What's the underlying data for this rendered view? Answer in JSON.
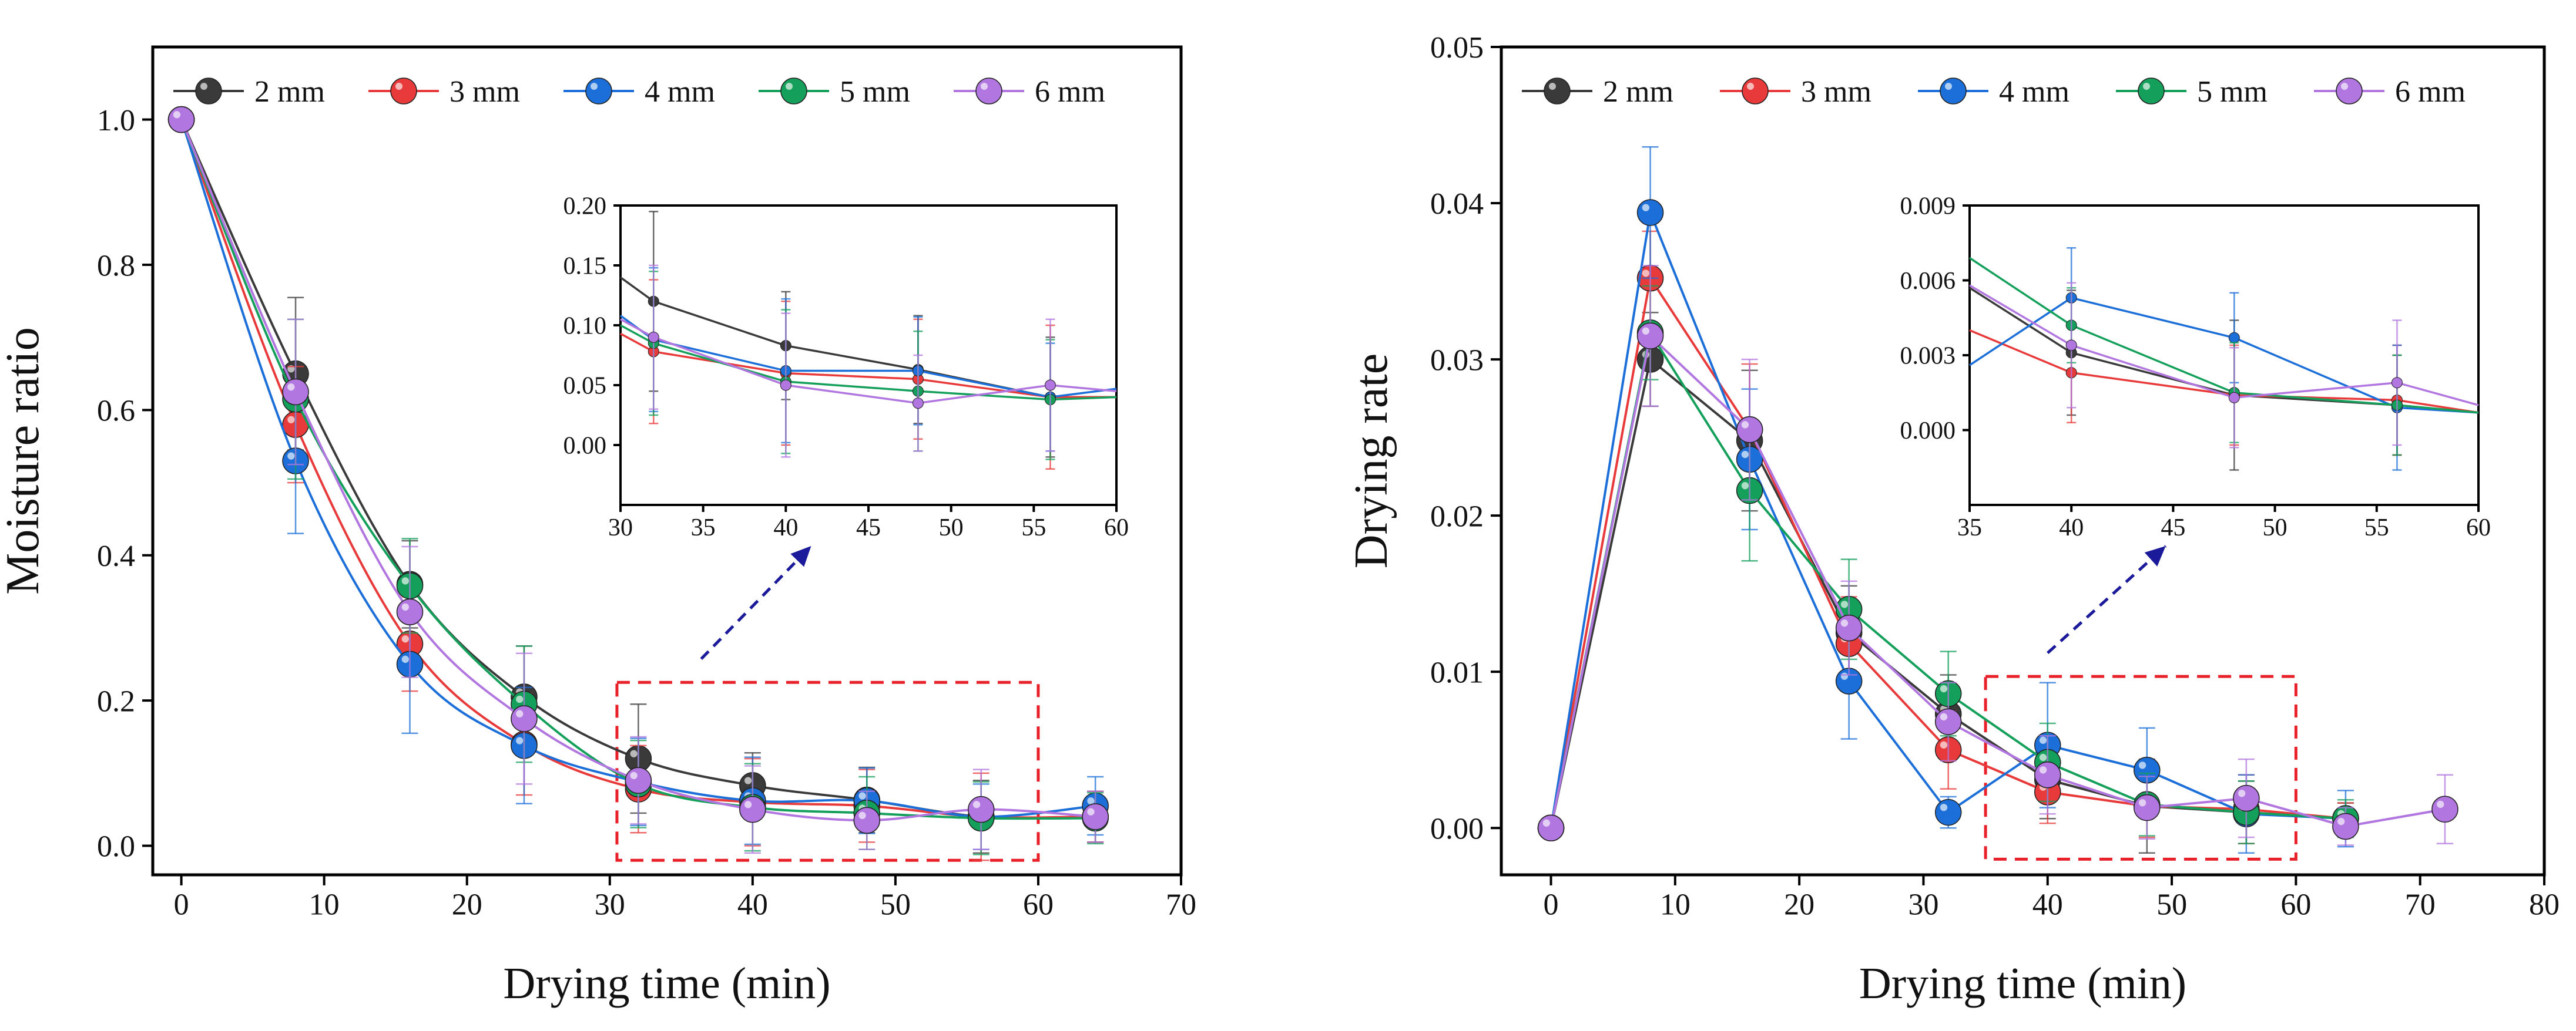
{
  "colors": {
    "2 mm": "#3a3a3a",
    "3 mm": "#e83a3a",
    "4 mm": "#1c6fd8",
    "5 mm": "#14a05a",
    "6 mm": "#b276e0"
  },
  "chart_data": [
    {
      "id": "moisture-main",
      "type": "line",
      "parent": "left",
      "title": "",
      "xlabel": "Drying time (min)",
      "ylabel": "Moisture ratio",
      "xlim": [
        -2,
        70
      ],
      "ylim": [
        -0.04,
        1.1
      ],
      "xticks": [
        0,
        10,
        20,
        30,
        40,
        50,
        60,
        70
      ],
      "yticks": [
        0.0,
        0.2,
        0.4,
        0.6,
        0.8,
        1.0
      ],
      "ytick_labels": [
        "0.0",
        "0.2",
        "0.4",
        "0.6",
        "0.8",
        "1.0"
      ],
      "legend": [
        "2 mm",
        "3 mm",
        "4 mm",
        "5 mm",
        "6 mm"
      ],
      "legend_position": "top",
      "annotation": {
        "type": "zoom-box",
        "x": [
          30.5,
          60
        ],
        "y": [
          -0.02,
          0.225
        ]
      },
      "series": [
        {
          "name": "2 mm",
          "x": [
            0,
            8,
            16,
            24,
            32,
            40,
            48,
            56,
            64
          ],
          "values": [
            1.0,
            0.65,
            0.36,
            0.205,
            0.12,
            0.083,
            0.063,
            0.04,
            0.04
          ],
          "err": [
            0,
            0.105,
            0.06,
            0.07,
            0.075,
            0.045,
            0.045,
            0.05,
            0.035
          ]
        },
        {
          "name": "3 mm",
          "x": [
            0,
            8,
            16,
            24,
            32,
            40,
            48,
            56,
            64
          ],
          "values": [
            1.0,
            0.58,
            0.278,
            0.14,
            0.078,
            0.06,
            0.055,
            0.04,
            0.04
          ],
          "err": [
            0,
            0.08,
            0.065,
            0.07,
            0.06,
            0.06,
            0.05,
            0.06,
            0.035
          ]
        },
        {
          "name": "4 mm",
          "x": [
            0,
            8,
            16,
            24,
            32,
            40,
            48,
            56,
            64
          ],
          "values": [
            1.0,
            0.53,
            0.25,
            0.138,
            0.088,
            0.062,
            0.062,
            0.04,
            0.055
          ],
          "err": [
            0,
            0.1,
            0.095,
            0.08,
            0.06,
            0.06,
            0.045,
            0.045,
            0.04
          ]
        },
        {
          "name": "5 mm",
          "x": [
            0,
            8,
            16,
            24,
            32,
            40,
            48,
            56,
            64
          ],
          "values": [
            1.0,
            0.615,
            0.358,
            0.195,
            0.085,
            0.053,
            0.045,
            0.038,
            0.038
          ],
          "err": [
            0,
            0.11,
            0.065,
            0.08,
            0.06,
            0.06,
            0.05,
            0.05,
            0.035
          ]
        },
        {
          "name": "6 mm",
          "x": [
            0,
            8,
            16,
            24,
            32,
            40,
            48,
            56,
            64
          ],
          "values": [
            1.0,
            0.625,
            0.322,
            0.175,
            0.09,
            0.05,
            0.035,
            0.05,
            0.04
          ],
          "err": [
            0,
            0.1,
            0.09,
            0.09,
            0.06,
            0.06,
            0.04,
            0.055,
            0.035
          ]
        }
      ]
    },
    {
      "id": "moisture-inset",
      "type": "line",
      "parent": "left",
      "title": "",
      "xlabel": "",
      "ylabel": "",
      "xlim": [
        30,
        60
      ],
      "ylim": [
        -0.05,
        0.2
      ],
      "xticks": [
        30,
        35,
        40,
        45,
        50,
        55,
        60
      ],
      "yticks": [
        0.0,
        0.05,
        0.1,
        0.15,
        0.2
      ],
      "ytick_labels": [
        "0.00",
        "0.05",
        "0.10",
        "0.15",
        "0.20"
      ],
      "series": [
        {
          "name": "2 mm",
          "x": [
            30,
            32,
            40,
            48,
            56,
            60
          ],
          "values": [
            0.14,
            0.12,
            0.083,
            0.063,
            0.04,
            0.04
          ],
          "err": [
            0,
            0.075,
            0.045,
            0.045,
            0.05,
            0
          ]
        },
        {
          "name": "3 mm",
          "x": [
            30,
            32,
            40,
            48,
            56,
            60
          ],
          "values": [
            0.093,
            0.078,
            0.06,
            0.055,
            0.04,
            0.04
          ],
          "err": [
            0,
            0.06,
            0.06,
            0.05,
            0.06,
            0
          ]
        },
        {
          "name": "4 mm",
          "x": [
            30,
            32,
            40,
            48,
            56,
            60
          ],
          "values": [
            0.108,
            0.088,
            0.062,
            0.062,
            0.04,
            0.047
          ],
          "err": [
            0,
            0.06,
            0.06,
            0.045,
            0.045,
            0
          ]
        },
        {
          "name": "5 mm",
          "x": [
            30,
            32,
            40,
            48,
            56,
            60
          ],
          "values": [
            0.1,
            0.085,
            0.053,
            0.045,
            0.038,
            0.04
          ],
          "err": [
            0,
            0.06,
            0.06,
            0.05,
            0.05,
            0
          ]
        },
        {
          "name": "6 mm",
          "x": [
            30,
            32,
            40,
            48,
            56,
            60
          ],
          "values": [
            0.105,
            0.09,
            0.05,
            0.035,
            0.05,
            0.045
          ],
          "err": [
            0,
            0.06,
            0.06,
            0.04,
            0.055,
            0
          ]
        }
      ]
    },
    {
      "id": "rate-main",
      "type": "line",
      "parent": "right",
      "title": "",
      "xlabel": "Drying time (min)",
      "ylabel": "Drying rate",
      "xlim": [
        -4,
        80
      ],
      "ylim": [
        -0.003,
        0.05
      ],
      "xticks": [
        0,
        10,
        20,
        30,
        40,
        50,
        60,
        70,
        80
      ],
      "yticks": [
        0.0,
        0.01,
        0.02,
        0.03,
        0.04,
        0.05
      ],
      "ytick_labels": [
        "0.00",
        "0.01",
        "0.02",
        "0.03",
        "0.04",
        "0.05"
      ],
      "legend": [
        "2 mm",
        "3 mm",
        "4 mm",
        "5 mm",
        "6 mm"
      ],
      "legend_position": "top",
      "annotation": {
        "type": "zoom-box",
        "x": [
          35,
          60
        ],
        "y": [
          -0.002,
          0.0097
        ]
      },
      "series": [
        {
          "name": "2 mm",
          "x": [
            0,
            8,
            16,
            24,
            32,
            40,
            48,
            56,
            64
          ],
          "values": [
            0,
            0.03,
            0.0248,
            0.0125,
            0.0073,
            0.0031,
            0.0014,
            0.001,
            0.0006
          ],
          "err": [
            0,
            0.003,
            0.0045,
            0.003,
            0.0025,
            0.0025,
            0.003,
            0.002,
            0.001
          ]
        },
        {
          "name": "3 mm",
          "x": [
            0,
            8,
            16,
            24,
            32,
            40,
            48,
            56,
            64
          ],
          "values": [
            0,
            0.0352,
            0.0255,
            0.0118,
            0.005,
            0.0023,
            0.0014,
            0.0012,
            0.0006
          ],
          "err": [
            0,
            0.003,
            0.0042,
            0.003,
            0.0025,
            0.002,
            0.002,
            0.0022,
            0.001
          ]
        },
        {
          "name": "4 mm",
          "x": [
            0,
            8,
            16,
            24,
            32,
            40,
            48,
            56,
            64
          ],
          "values": [
            0,
            0.0394,
            0.0236,
            0.0094,
            0.001,
            0.0053,
            0.0037,
            0.0009,
            0.0006
          ],
          "err": [
            0,
            0.0042,
            0.0045,
            0.0037,
            0.001,
            0.004,
            0.0027,
            0.0025,
            0.0018
          ]
        },
        {
          "name": "5 mm",
          "x": [
            0,
            8,
            16,
            24,
            32,
            40,
            48,
            56,
            64
          ],
          "values": [
            0,
            0.0317,
            0.0216,
            0.014,
            0.0086,
            0.0042,
            0.0015,
            0.001,
            0.0006
          ],
          "err": [
            0,
            0.003,
            0.0045,
            0.0032,
            0.0027,
            0.0025,
            0.002,
            0.002,
            0.0012
          ]
        },
        {
          "name": "6 mm",
          "x": [
            0,
            8,
            16,
            24,
            32,
            40,
            48,
            56,
            64,
            72
          ],
          "values": [
            0,
            0.0315,
            0.0255,
            0.0128,
            0.0068,
            0.0034,
            0.0013,
            0.0019,
            0.0001,
            0.0012
          ],
          "err": [
            0,
            0.0045,
            0.0045,
            0.003,
            0.0025,
            0.0025,
            0.002,
            0.0025,
            0.0012,
            0.0022
          ]
        }
      ]
    },
    {
      "id": "rate-inset",
      "type": "line",
      "parent": "right",
      "title": "",
      "xlabel": "",
      "ylabel": "",
      "xlim": [
        35,
        60
      ],
      "ylim": [
        -0.003,
        0.009
      ],
      "xticks": [
        35,
        40,
        45,
        50,
        55,
        60
      ],
      "yticks": [
        0.0,
        0.003,
        0.006,
        0.009
      ],
      "ytick_labels": [
        "0.000",
        "0.003",
        "0.006",
        "0.009"
      ],
      "series": [
        {
          "name": "2 mm",
          "x": [
            35,
            40,
            48,
            56,
            60
          ],
          "values": [
            0.0057,
            0.0031,
            0.0014,
            0.001,
            0.0007
          ],
          "err": [
            0,
            0.0025,
            0.003,
            0.002,
            0
          ]
        },
        {
          "name": "3 mm",
          "x": [
            35,
            40,
            48,
            56,
            60
          ],
          "values": [
            0.004,
            0.0023,
            0.0014,
            0.0012,
            0.0007
          ],
          "err": [
            0,
            0.002,
            0.002,
            0.0022,
            0
          ]
        },
        {
          "name": "4 mm",
          "x": [
            35,
            40,
            48,
            56,
            60
          ],
          "values": [
            0.0026,
            0.0053,
            0.0037,
            0.0009,
            0.0007
          ],
          "err": [
            0,
            0.002,
            0.0018,
            0.0025,
            0
          ]
        },
        {
          "name": "5 mm",
          "x": [
            35,
            40,
            48,
            56,
            60
          ],
          "values": [
            0.0069,
            0.0042,
            0.0015,
            0.001,
            0.0007
          ],
          "err": [
            0,
            0.0015,
            0.002,
            0.002,
            0
          ]
        },
        {
          "name": "6 mm",
          "x": [
            35,
            40,
            48,
            56,
            60
          ],
          "values": [
            0.0058,
            0.0034,
            0.0013,
            0.0019,
            0.001
          ],
          "err": [
            0,
            0.0025,
            0.002,
            0.0025,
            0
          ]
        }
      ]
    }
  ]
}
